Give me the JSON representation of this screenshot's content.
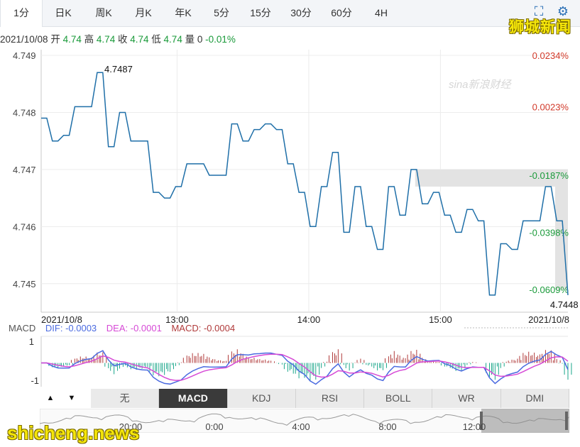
{
  "tabs": [
    "1分",
    "日K",
    "周K",
    "月K",
    "年K",
    "5分",
    "15分",
    "30分",
    "60分",
    "4H"
  ],
  "active_tab": 0,
  "watermark_top": "狮城新闻",
  "watermark_bottom": "shicheng.news",
  "sina_logo": "sina新浪财经",
  "info": {
    "date": "2021/10/08",
    "open_label": "开",
    "open": "4.74",
    "high_label": "高",
    "high": "4.74",
    "close_label": "收",
    "close": "4.74",
    "low_label": "低",
    "low": "4.74",
    "vol_label": "量",
    "vol": "0",
    "change": "-0.01%"
  },
  "colors": {
    "line": "#1f6fa8",
    "up": "#d23a2a",
    "down": "#1a9a3a",
    "dif": "#4a6ae0",
    "dea": "#d64ad6",
    "macd": "#b03a3a"
  },
  "chart_data": {
    "type": "line",
    "y_ticks": [
      "4.749",
      "4.748",
      "4.747",
      "4.746",
      "4.745"
    ],
    "ylim": [
      4.7445,
      4.7491
    ],
    "pct_labels": [
      {
        "text": "0.0234%",
        "color": "up",
        "y": 4.749
      },
      {
        "text": "0.0023%",
        "color": "up",
        "y": 4.7481
      },
      {
        "text": "-0.0187%",
        "color": "down",
        "y": 4.7469
      },
      {
        "text": "-0.0398%",
        "color": "down",
        "y": 4.7459
      },
      {
        "text": "-0.0609%",
        "color": "down",
        "y": 4.7449
      }
    ],
    "x_ticks": [
      {
        "label": "2021/10/8",
        "t": 0
      },
      {
        "label": "13:00",
        "t": 0.258
      },
      {
        "label": "14:00",
        "t": 0.508
      },
      {
        "label": "15:00",
        "t": 0.758
      },
      {
        "label": "2021/10/8",
        "t": 1
      }
    ],
    "annotations": [
      {
        "text": "4.7487",
        "t": 0.12,
        "y": 4.7487
      },
      {
        "text": "4.7448",
        "t": 0.985,
        "y": 4.7448
      }
    ],
    "values": [
      4.7479,
      4.7479,
      4.7475,
      4.7475,
      4.7476,
      4.7476,
      4.7481,
      4.7481,
      4.7481,
      4.7481,
      4.7487,
      4.7487,
      4.7474,
      4.7474,
      4.748,
      4.748,
      4.7475,
      4.7475,
      4.7475,
      4.7475,
      4.7466,
      4.7466,
      4.7465,
      4.7465,
      4.7467,
      4.7467,
      4.7471,
      4.7471,
      4.7471,
      4.7471,
      4.7469,
      4.7469,
      4.7469,
      4.7469,
      4.7478,
      4.7478,
      4.7475,
      4.7475,
      4.7477,
      4.7477,
      4.7478,
      4.7478,
      4.7477,
      4.7477,
      4.7471,
      4.7471,
      4.7466,
      4.7466,
      4.746,
      4.746,
      4.7467,
      4.7467,
      4.7473,
      4.7473,
      4.7459,
      4.7459,
      4.7467,
      4.7467,
      4.746,
      4.746,
      4.7456,
      4.7456,
      4.7467,
      4.7467,
      4.7462,
      4.7462,
      4.747,
      4.747,
      4.7464,
      4.7464,
      4.7466,
      4.7466,
      4.7462,
      4.7462,
      4.7459,
      4.7459,
      4.7463,
      4.7463,
      4.7461,
      4.7461,
      4.7448,
      4.7448,
      4.7457,
      4.7457,
      4.7456,
      4.7456,
      4.7461,
      4.7461,
      4.7461,
      4.7461,
      4.7467,
      4.7467,
      4.7461,
      4.7461,
      4.7448
    ]
  },
  "macd": {
    "label": "MACD",
    "dif": "DIF: -0.0003",
    "dea": "DEA: -0.0001",
    "macd": "MACD: -0.0004",
    "y_ticks": [
      "1",
      "-1"
    ]
  },
  "indicators": [
    "无",
    "MACD",
    "KDJ",
    "RSI",
    "BOLL",
    "WR",
    "DMI"
  ],
  "active_indicator": 1,
  "nav_ticks": [
    "20:00",
    "0:00",
    "4:00",
    "8:00",
    "12:00"
  ]
}
